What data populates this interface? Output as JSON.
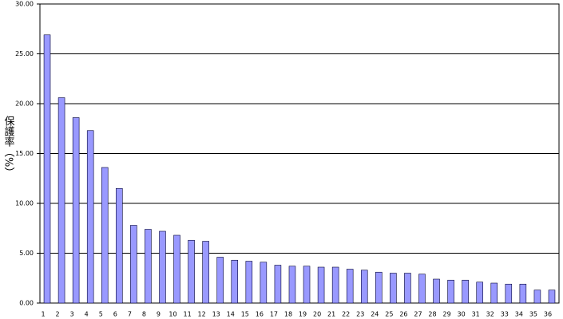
{
  "chart_data": {
    "type": "bar",
    "y_label": "保護率（%）",
    "categories": [
      "1",
      "2",
      "3",
      "4",
      "5",
      "6",
      "7",
      "8",
      "9",
      "10",
      "11",
      "12",
      "13",
      "14",
      "15",
      "16",
      "17",
      "18",
      "19",
      "20",
      "21",
      "22",
      "23",
      "24",
      "25",
      "26",
      "27",
      "28",
      "29",
      "30",
      "31",
      "32",
      "33",
      "34",
      "35",
      "36"
    ],
    "values": [
      26.9,
      20.6,
      18.6,
      17.3,
      13.6,
      11.5,
      7.8,
      7.4,
      7.2,
      6.8,
      6.3,
      6.2,
      4.6,
      4.3,
      4.2,
      4.1,
      3.8,
      3.7,
      3.7,
      3.6,
      3.6,
      3.4,
      3.3,
      3.1,
      3.0,
      3.0,
      2.9,
      2.4,
      2.3,
      2.3,
      2.1,
      2.0,
      1.9,
      1.9,
      1.3,
      1.3
    ],
    "color": "#9999ff",
    "ylim": [
      0,
      30
    ],
    "yticks": [
      {
        "value": 0,
        "label": "0.00"
      },
      {
        "value": 5,
        "label": "5.00"
      },
      {
        "value": 10,
        "label": "10.00"
      },
      {
        "value": 15,
        "label": "15.00"
      },
      {
        "value": 20,
        "label": "20.00"
      },
      {
        "value": 25,
        "label": "25.00"
      },
      {
        "value": 30,
        "label": "30.00"
      }
    ],
    "grid": true
  }
}
